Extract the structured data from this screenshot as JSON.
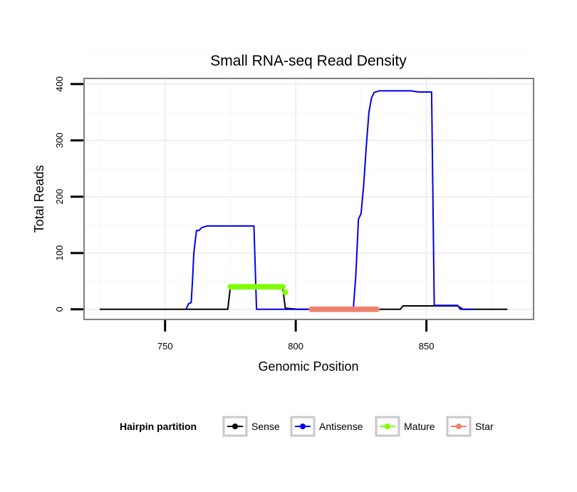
{
  "chart_data": {
    "type": "line",
    "title": "Small RNA-seq Read Density",
    "xlabel": "Genomic Position",
    "ylabel": "Total Reads",
    "xlim": [
      719,
      891
    ],
    "ylim": [
      -18,
      410
    ],
    "xticks": [
      750,
      800,
      850
    ],
    "yticks": [
      0,
      100,
      200,
      300,
      400
    ],
    "grid": true,
    "legend_position": "bottom",
    "legend_title": "Hairpin partition",
    "series": [
      {
        "name": "Sense",
        "color": "#000000",
        "markers": false,
        "points": [
          [
            725,
            0
          ],
          [
            774,
            0
          ],
          [
            775,
            40
          ],
          [
            795,
            40
          ],
          [
            796,
            2
          ],
          [
            801,
            0
          ],
          [
            840,
            0
          ],
          [
            841,
            6
          ],
          [
            862,
            6
          ],
          [
            864,
            0
          ],
          [
            881,
            0
          ]
        ]
      },
      {
        "name": "Antisense",
        "color": "#0000ee",
        "markers": false,
        "points": [
          [
            758,
            0
          ],
          [
            759,
            10
          ],
          [
            760,
            12
          ],
          [
            760.5,
            50
          ],
          [
            761,
            100
          ],
          [
            762,
            140
          ],
          [
            763,
            140
          ],
          [
            764,
            145
          ],
          [
            766,
            148
          ],
          [
            784,
            148
          ],
          [
            785,
            0
          ],
          [
            822,
            0
          ],
          [
            823,
            60
          ],
          [
            824,
            160
          ],
          [
            825,
            170
          ],
          [
            826,
            220
          ],
          [
            827,
            290
          ],
          [
            828,
            350
          ],
          [
            829,
            375
          ],
          [
            830,
            385
          ],
          [
            832,
            388
          ],
          [
            844,
            388
          ],
          [
            847,
            386
          ],
          [
            852,
            386
          ],
          [
            853,
            7
          ],
          [
            862,
            7
          ],
          [
            863,
            0
          ],
          [
            868,
            0
          ]
        ]
      },
      {
        "name": "Mature",
        "color": "#7fff00",
        "markers": true,
        "points": [
          [
            775,
            40
          ],
          [
            776,
            40
          ],
          [
            777,
            40
          ],
          [
            778,
            40
          ],
          [
            779,
            40
          ],
          [
            780,
            40
          ],
          [
            781,
            40
          ],
          [
            782,
            40
          ],
          [
            783,
            40
          ],
          [
            784,
            40
          ],
          [
            785,
            40
          ],
          [
            786,
            40
          ],
          [
            787,
            40
          ],
          [
            788,
            40
          ],
          [
            789,
            40
          ],
          [
            790,
            40
          ],
          [
            791,
            40
          ],
          [
            792,
            40
          ],
          [
            793,
            40
          ],
          [
            794,
            40
          ],
          [
            795,
            40
          ],
          [
            796,
            30
          ]
        ]
      },
      {
        "name": "Star",
        "color": "#f08070",
        "markers": true,
        "points": [
          [
            806,
            0
          ],
          [
            807,
            0
          ],
          [
            808,
            0
          ],
          [
            809,
            0
          ],
          [
            810,
            0
          ],
          [
            811,
            0
          ],
          [
            812,
            0
          ],
          [
            813,
            0
          ],
          [
            814,
            0
          ],
          [
            815,
            0
          ],
          [
            816,
            0
          ],
          [
            817,
            0
          ],
          [
            818,
            0
          ],
          [
            819,
            0
          ],
          [
            820,
            0
          ],
          [
            821,
            0
          ],
          [
            822,
            0
          ],
          [
            823,
            0
          ],
          [
            824,
            0
          ],
          [
            825,
            0
          ],
          [
            826,
            0
          ],
          [
            827,
            0
          ],
          [
            828,
            0
          ],
          [
            829,
            0
          ],
          [
            830,
            0
          ],
          [
            831,
            0
          ]
        ]
      }
    ]
  }
}
